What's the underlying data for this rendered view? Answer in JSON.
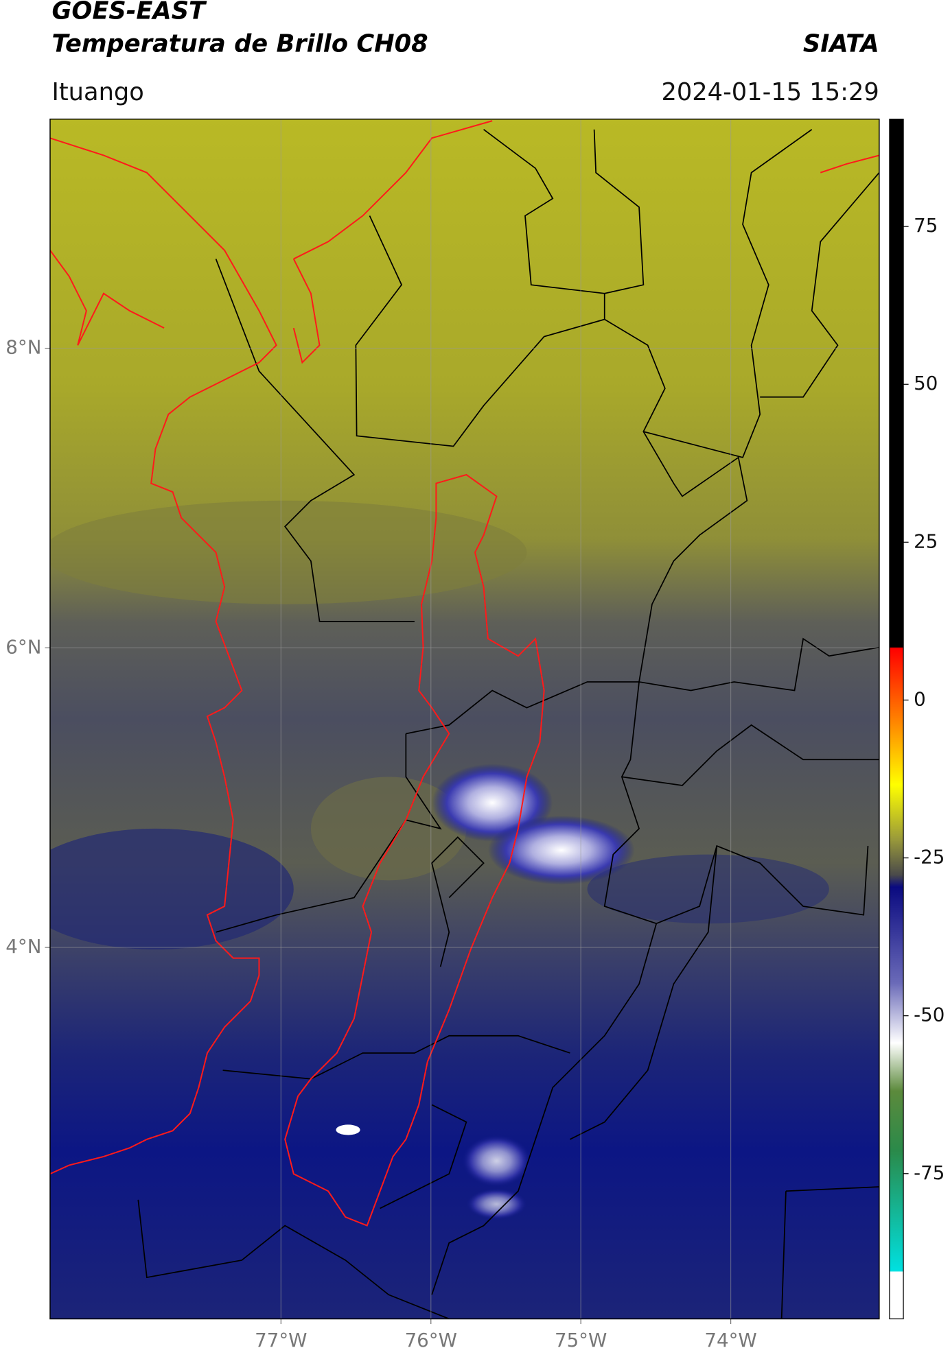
{
  "chart_data": {
    "type": "map",
    "title": "GOES-EAST",
    "subtitle": "Temperatura de Brillo CH08",
    "source": "SIATA",
    "location": "Ituango",
    "datetime": "2024-01-15 15:29",
    "xlim": [
      -78.54,
      -73.01
    ],
    "ylim": [
      1.52,
      9.53
    ],
    "xticks": [
      {
        "value": -77,
        "label": "77°W"
      },
      {
        "value": -76,
        "label": "76°W"
      },
      {
        "value": -75,
        "label": "75°W"
      },
      {
        "value": -74,
        "label": "74°W"
      }
    ],
    "yticks": [
      {
        "value": 8,
        "label": "8°N"
      },
      {
        "value": 6,
        "label": "6°N"
      },
      {
        "value": 4,
        "label": "4°N"
      }
    ],
    "grid": true,
    "colorbar": {
      "lim": [
        -98,
        92
      ],
      "ticks": [
        75,
        50,
        25,
        0,
        -25,
        -50,
        -75
      ]
    }
  }
}
